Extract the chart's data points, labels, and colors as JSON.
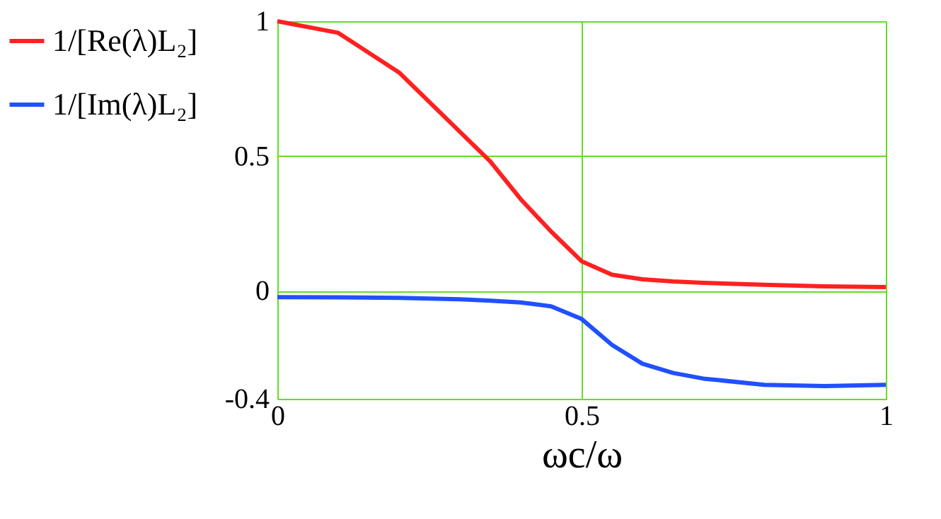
{
  "chart_data": {
    "type": "line",
    "xlabel": "ωc/ω",
    "x": [
      0,
      0.1,
      0.2,
      0.3,
      0.35,
      0.4,
      0.45,
      0.5,
      0.55,
      0.6,
      0.65,
      0.7,
      0.8,
      0.9,
      1
    ],
    "series": [
      {
        "name": "1/[Re(λ)L₂]",
        "color": "#ff2020",
        "values": [
          1.0,
          0.957,
          0.81,
          0.59,
          0.48,
          0.34,
          0.22,
          0.11,
          0.06,
          0.043,
          0.035,
          0.03,
          0.023,
          0.017,
          0.014
        ]
      },
      {
        "name": "1/[Im(λ)L₂]",
        "color": "#2050ff",
        "values": [
          -0.023,
          -0.024,
          -0.026,
          -0.031,
          -0.036,
          -0.043,
          -0.057,
          -0.104,
          -0.2,
          -0.27,
          -0.304,
          -0.325,
          -0.348,
          -0.353,
          -0.348
        ]
      }
    ],
    "xlim": [
      0,
      1
    ],
    "ylim": [
      -0.4,
      1
    ],
    "xticks": [
      0,
      0.5,
      1
    ],
    "yticks": [
      -0.4,
      0,
      0.5,
      1
    ],
    "grid": true,
    "legend": "left",
    "marker": "none",
    "line_style": "solid"
  }
}
